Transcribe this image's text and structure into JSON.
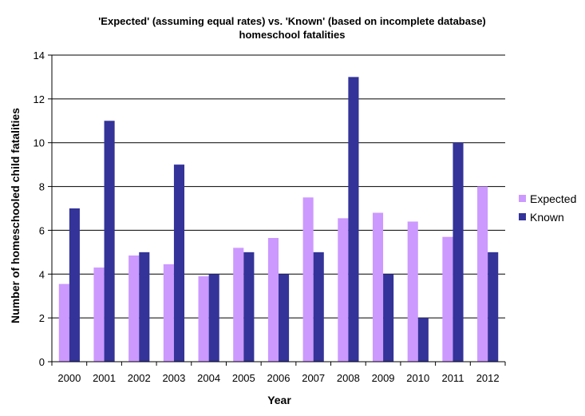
{
  "chart_data": {
    "type": "bar",
    "title_line1": "'Expected' (assuming equal rates) vs. 'Known' (based on incomplete database)",
    "title_line2": "homeschool fatalities",
    "xlabel": "Year",
    "ylabel": "Number of homeschooled child fatalities",
    "ylim": [
      0,
      14
    ],
    "yticks": [
      0,
      2,
      4,
      6,
      8,
      10,
      12,
      14
    ],
    "grid": true,
    "legend_position": "right",
    "categories": [
      "2000",
      "2001",
      "2002",
      "2003",
      "2004",
      "2005",
      "2006",
      "2007",
      "2008",
      "2009",
      "2010",
      "2011",
      "2012"
    ],
    "series": [
      {
        "name": "Expected",
        "color": "#cc99ff",
        "values": [
          3.55,
          4.3,
          4.85,
          4.45,
          3.9,
          5.2,
          5.65,
          7.5,
          6.55,
          6.8,
          6.4,
          5.7,
          8.0
        ]
      },
      {
        "name": "Known",
        "color": "#333399",
        "values": [
          7,
          11,
          5,
          9,
          4,
          5,
          4,
          5,
          13,
          4,
          2,
          10,
          5
        ]
      }
    ]
  }
}
